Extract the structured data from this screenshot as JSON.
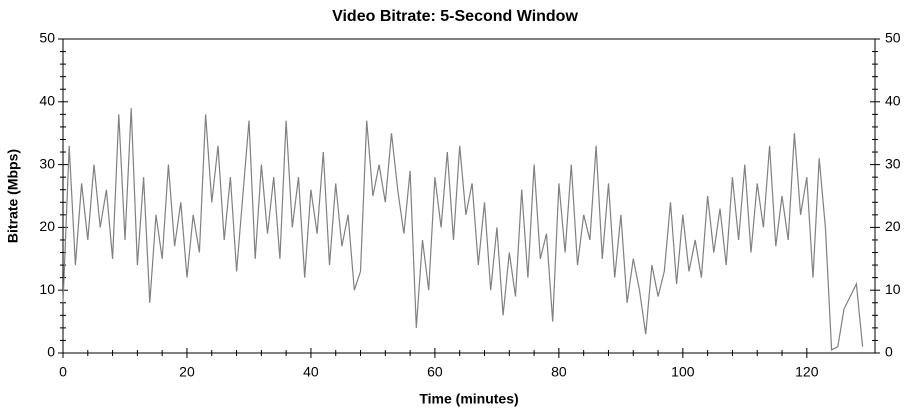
{
  "chart_data": {
    "type": "line",
    "title": "Video Bitrate: 5-Second Window",
    "x_label": "Time (minutes)",
    "y_label": "Bitrate (Mbps)",
    "xlim": [
      0,
      131
    ],
    "xticks": [
      0,
      20,
      40,
      60,
      80,
      100,
      120
    ],
    "ylim": [
      0,
      50
    ],
    "yticks": [
      0,
      10,
      20,
      30,
      40,
      50
    ],
    "y2lim": [
      0,
      50
    ],
    "y2ticks": [
      0,
      10,
      20,
      30,
      40,
      50
    ],
    "grid": false,
    "x": [
      0,
      1,
      2,
      3,
      4,
      5,
      6,
      7,
      8,
      9,
      10,
      11,
      12,
      13,
      14,
      15,
      16,
      17,
      18,
      19,
      20,
      21,
      22,
      23,
      24,
      25,
      26,
      27,
      28,
      29,
      30,
      31,
      32,
      33,
      34,
      35,
      36,
      37,
      38,
      39,
      40,
      41,
      42,
      43,
      44,
      45,
      46,
      47,
      48,
      49,
      50,
      51,
      52,
      53,
      54,
      55,
      56,
      57,
      58,
      59,
      60,
      61,
      62,
      63,
      64,
      65,
      66,
      67,
      68,
      69,
      70,
      71,
      72,
      73,
      74,
      75,
      76,
      77,
      78,
      79,
      80,
      81,
      82,
      83,
      84,
      85,
      86,
      87,
      88,
      89,
      90,
      91,
      92,
      93,
      94,
      95,
      96,
      97,
      98,
      99,
      100,
      101,
      102,
      103,
      104,
      105,
      106,
      107,
      108,
      109,
      110,
      111,
      112,
      113,
      114,
      115,
      116,
      117,
      118,
      119,
      120,
      121,
      122,
      123,
      124,
      125,
      126,
      127,
      128,
      129
    ],
    "series": [
      {
        "name": "Bitrate",
        "color": "#808080",
        "values": [
          8,
          33,
          14,
          27,
          18,
          30,
          20,
          26,
          15,
          38,
          18,
          39,
          14,
          28,
          8,
          22,
          15,
          30,
          17,
          24,
          12,
          22,
          16,
          38,
          24,
          33,
          18,
          28,
          13,
          25,
          37,
          15,
          30,
          19,
          28,
          15,
          37,
          20,
          28,
          12,
          26,
          19,
          32,
          14,
          27,
          17,
          22,
          10,
          13,
          37,
          25,
          30,
          24,
          35,
          26,
          19,
          29,
          4,
          18,
          10,
          28,
          20,
          32,
          18,
          33,
          22,
          27,
          14,
          24,
          10,
          20,
          6,
          16,
          9,
          26,
          12,
          30,
          15,
          19,
          5,
          27,
          16,
          30,
          14,
          22,
          18,
          33,
          15,
          27,
          12,
          22,
          8,
          15,
          10,
          3,
          14,
          9,
          13,
          24,
          11,
          22,
          13,
          18,
          12,
          25,
          16,
          23,
          14,
          28,
          18,
          30,
          16,
          27,
          20,
          33,
          17,
          25,
          18,
          35,
          22,
          28,
          12,
          31,
          20,
          0.5,
          1,
          7,
          9,
          11,
          1
        ]
      }
    ]
  }
}
